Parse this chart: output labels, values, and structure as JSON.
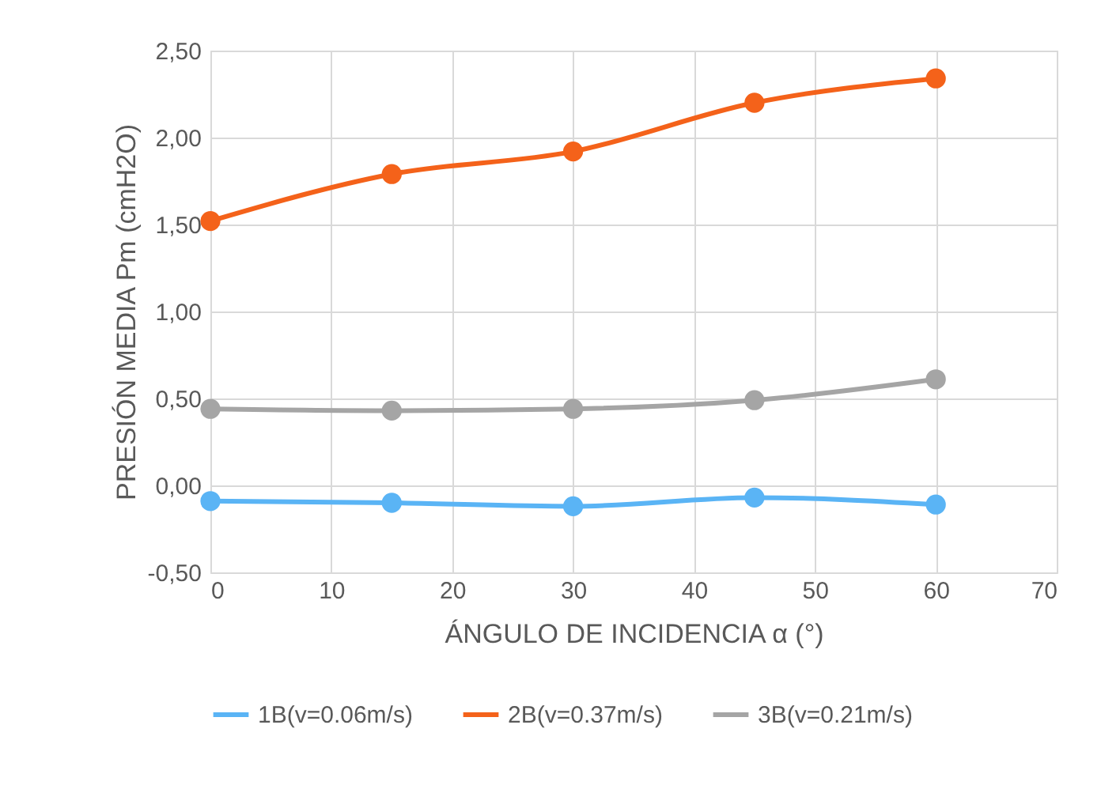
{
  "chart_data": {
    "type": "line",
    "xlabel": "ÁNGULO DE INCIDENCIA α (°)",
    "ylabel": "PRESIÓN MEDIA Pm (cmH2O)",
    "x": [
      0,
      15,
      30,
      45,
      60
    ],
    "series": [
      {
        "name": "1B(v=0.06m/s)",
        "color": "#5ab4f5",
        "values": [
          -0.09,
          -0.1,
          -0.12,
          -0.07,
          -0.11
        ]
      },
      {
        "name": "2B(v=0.37m/s)",
        "color": "#f4621a",
        "values": [
          1.52,
          1.79,
          1.92,
          2.2,
          2.34
        ]
      },
      {
        "name": "3B(v=0.21m/s)",
        "color": "#a5a5a5",
        "values": [
          0.44,
          0.43,
          0.44,
          0.49,
          0.61
        ]
      }
    ],
    "xlim": [
      0,
      70
    ],
    "xticks": [
      0,
      10,
      20,
      30,
      40,
      50,
      60,
      70
    ],
    "ylim": [
      -0.5,
      2.5
    ],
    "yticks": [
      {
        "value": -0.5,
        "label": "-0,50"
      },
      {
        "value": 0,
        "label": "0,00"
      },
      {
        "value": 0.5,
        "label": "0,50"
      },
      {
        "value": 1,
        "label": "1,00"
      },
      {
        "value": 1.5,
        "label": "1,50"
      },
      {
        "value": 2,
        "label": "2,00"
      },
      {
        "value": 2.5,
        "label": "2,50"
      }
    ],
    "grid": true,
    "legend": "bottom",
    "marker": "circle",
    "line_style": "solid"
  }
}
